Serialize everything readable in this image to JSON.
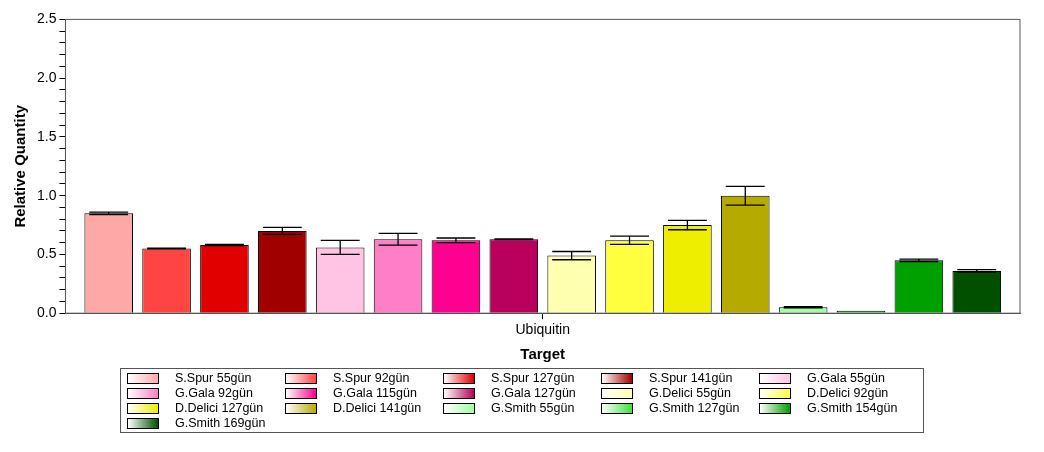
{
  "chart_data": {
    "type": "bar",
    "xlabel": "Target",
    "ylabel": "Relative Quantity",
    "categories": [
      "Ubiquitin"
    ],
    "ylim": [
      0,
      2.5
    ],
    "yticks": [
      {
        "value": 0,
        "label": "0.0"
      },
      {
        "value": 0.1,
        "label": null
      },
      {
        "value": 0.2,
        "label": null
      },
      {
        "value": 0.3,
        "label": null
      },
      {
        "value": 0.4,
        "label": null
      },
      {
        "value": 0.5,
        "label": "0.5"
      },
      {
        "value": 0.6,
        "label": null
      },
      {
        "value": 0.7,
        "label": null
      },
      {
        "value": 0.8,
        "label": null
      },
      {
        "value": 0.9,
        "label": null
      },
      {
        "value": 1,
        "label": "1.0"
      },
      {
        "value": 1.1,
        "label": null
      },
      {
        "value": 1.2,
        "label": null
      },
      {
        "value": 1.3,
        "label": null
      },
      {
        "value": 1.4,
        "label": null
      },
      {
        "value": 1.5,
        "label": "1.5"
      },
      {
        "value": 1.6,
        "label": null
      },
      {
        "value": 1.7,
        "label": null
      },
      {
        "value": 1.8,
        "label": null
      },
      {
        "value": 1.9,
        "label": null
      },
      {
        "value": 2,
        "label": "2.0"
      },
      {
        "value": 2.1,
        "label": null
      },
      {
        "value": 2.2,
        "label": null
      },
      {
        "value": 2.3,
        "label": null
      },
      {
        "value": 2.4,
        "label": null
      },
      {
        "value": 2.5,
        "label": "2.5"
      }
    ],
    "grid": false,
    "legend": "bottom",
    "series": [
      {
        "name": "S.Spur 55gün",
        "color": "#ffa8a8",
        "values": [
          0.85
        ],
        "errors": [
          0.01
        ]
      },
      {
        "name": "S.Spur 92gün",
        "color": "#ff4444",
        "values": [
          0.55
        ],
        "errors": [
          0.003
        ]
      },
      {
        "name": "S.Spur 127gün",
        "color": "#e00000",
        "values": [
          0.58
        ],
        "errors": [
          0.005
        ]
      },
      {
        "name": "S.Spur 141gün",
        "color": "#a00000",
        "values": [
          0.7
        ],
        "errors": [
          0.03
        ]
      },
      {
        "name": "G.Gala 55gün",
        "color": "#ffc4e4",
        "values": [
          0.56
        ],
        "errors": [
          0.06
        ]
      },
      {
        "name": "G.Gala 92gün",
        "color": "#ff7ec8",
        "values": [
          0.63
        ],
        "errors": [
          0.05
        ]
      },
      {
        "name": "G.Gala 115gün",
        "color": "#ff0090",
        "values": [
          0.62
        ],
        "errors": [
          0.02
        ]
      },
      {
        "name": "G.Gala 127gün",
        "color": "#b8005c",
        "values": [
          0.63
        ],
        "errors": [
          0.003
        ]
      },
      {
        "name": "G.Delici 55gün",
        "color": "#ffffb0",
        "values": [
          0.49
        ],
        "errors": [
          0.035
        ]
      },
      {
        "name": "D.Delici 92gün",
        "color": "#ffff40",
        "values": [
          0.62
        ],
        "errors": [
          0.035
        ]
      },
      {
        "name": "D.Delici 127gün",
        "color": "#eeee00",
        "values": [
          0.75
        ],
        "errors": [
          0.04
        ]
      },
      {
        "name": "D.Delici 141gün",
        "color": "#b4aa00",
        "values": [
          1.0
        ],
        "errors": [
          0.08
        ]
      },
      {
        "name": "G.Smith 55gün",
        "color": "#a0ffa0",
        "values": [
          0.05
        ],
        "errors": [
          0.005
        ]
      },
      {
        "name": "G.Smith 127gün",
        "color": "#40e040",
        "values": [
          0.02
        ],
        "errors": [
          null
        ]
      },
      {
        "name": "G.Smith 154gün",
        "color": "#00a000",
        "values": [
          0.45
        ],
        "errors": [
          0.01
        ]
      },
      {
        "name": "G.Smith 169gün",
        "color": "#005000",
        "values": [
          0.36
        ],
        "errors": [
          0.01
        ]
      }
    ]
  }
}
